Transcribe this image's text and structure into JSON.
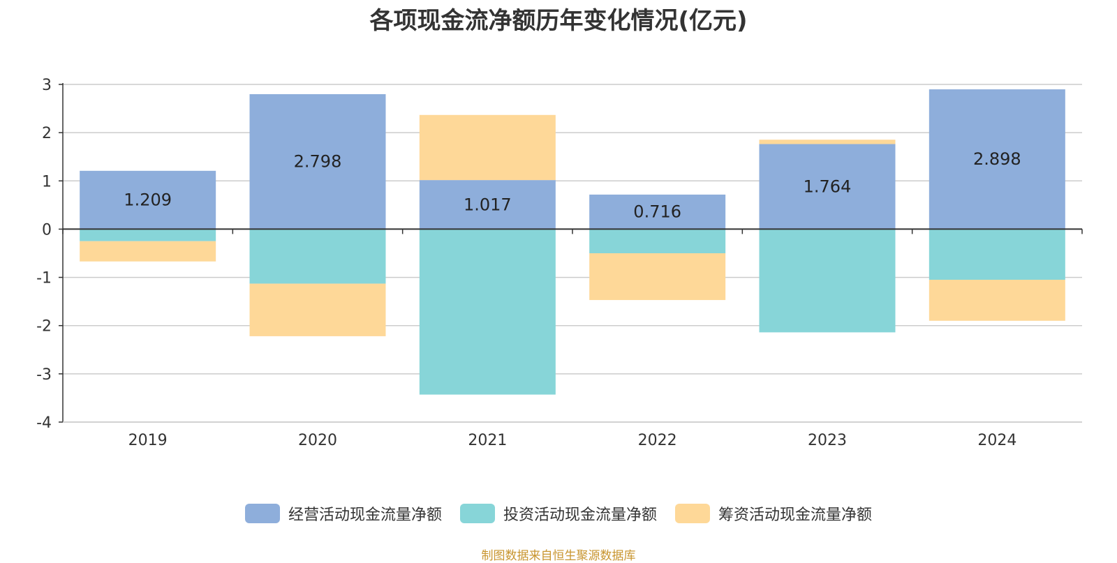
{
  "title": "各项现金流净额历年变化情况(亿元)",
  "source": "制图数据来自恒生聚源数据库",
  "chart_data": {
    "type": "bar",
    "stacked": true,
    "categories": [
      "2019",
      "2020",
      "2021",
      "2022",
      "2023",
      "2024"
    ],
    "series": [
      {
        "name": "经营活动现金流量净额",
        "color": "#8eaedb",
        "values": [
          1.209,
          2.798,
          1.017,
          0.716,
          1.764,
          2.898
        ],
        "show_labels": true
      },
      {
        "name": "投资活动现金流量净额",
        "color": "#87d5d8",
        "values": [
          -0.25,
          -1.13,
          -3.43,
          -0.5,
          -2.14,
          -1.05
        ],
        "show_labels": false
      },
      {
        "name": "筹资活动现金流量净额",
        "color": "#fed898",
        "values": [
          -0.42,
          -1.09,
          1.35,
          -0.97,
          0.09,
          -0.85
        ],
        "show_labels": false
      }
    ],
    "ylim": [
      -4,
      3
    ],
    "yticks": [
      3,
      2,
      1,
      0,
      -1,
      -2,
      -3,
      -4
    ],
    "grid": true,
    "legend_position": "bottom"
  }
}
